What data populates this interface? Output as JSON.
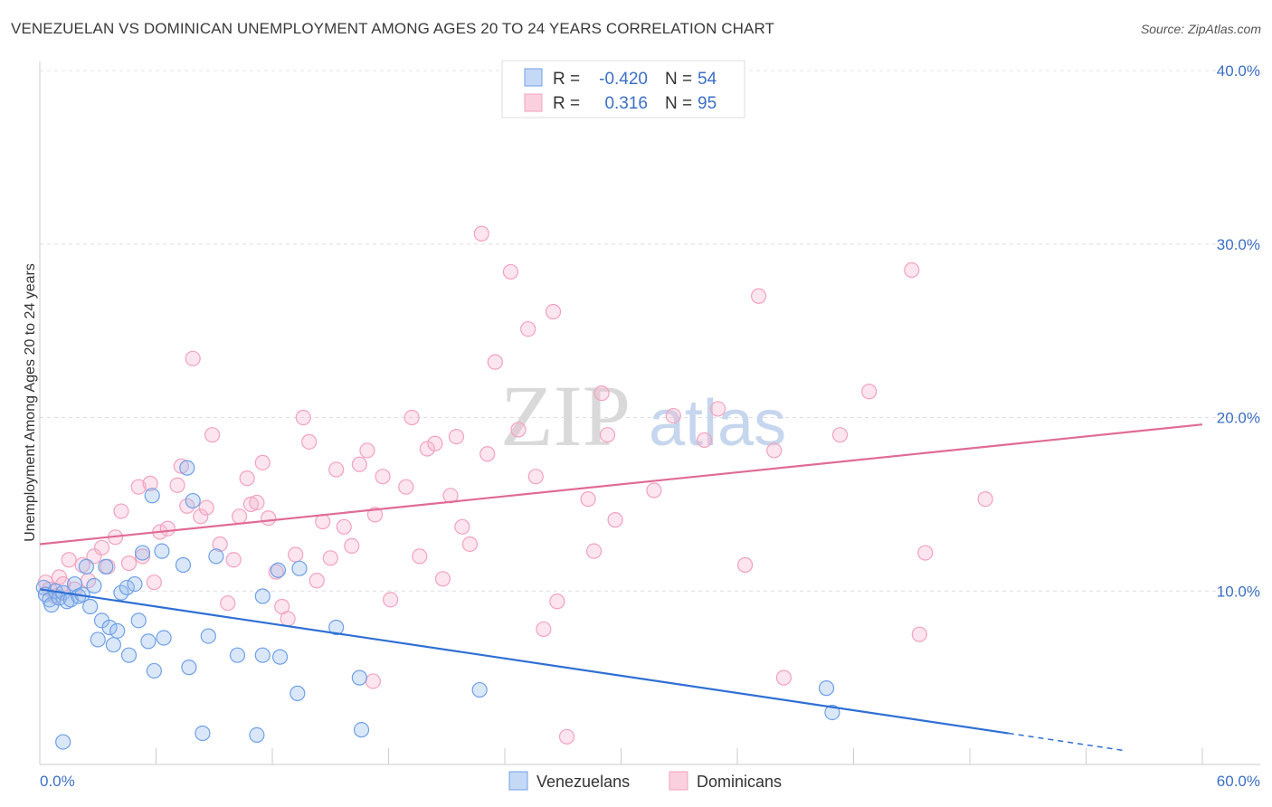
{
  "chart_data": {
    "type": "scatter",
    "title": "VENEZUELAN VS DOMINICAN UNEMPLOYMENT AMONG AGES 20 TO 24 YEARS CORRELATION CHART",
    "source": "Source: ZipAtlas.com",
    "ylabel": "Unemployment Among Ages 20 to 24 years",
    "xlim": [
      0,
      60
    ],
    "ylim": [
      0,
      40
    ],
    "x_tick_labels": [
      "0.0%",
      "60.0%"
    ],
    "y_ticks": [
      10,
      20,
      30,
      40
    ],
    "y_tick_labels": [
      "10.0%",
      "20.0%",
      "30.0%",
      "40.0%"
    ],
    "watermark": {
      "zip": "ZIP",
      "atlas": "atlas"
    },
    "legend": {
      "r_label": "R =",
      "n_label": "N =",
      "entries": [
        {
          "r": "-0.420",
          "n": "54"
        },
        {
          "r": "0.316",
          "n": "95"
        }
      ]
    },
    "series": [
      {
        "name": "Venezuelans",
        "color": "#6fa0e6",
        "line_color": "#2f6fd4",
        "trend": {
          "x0": 0,
          "y0": 10.1,
          "x1": 56.0,
          "y1": 0.8,
          "solid_until": 50.0
        },
        "points": [
          [
            0.2,
            10.2
          ],
          [
            0.3,
            9.8
          ],
          [
            0.5,
            9.5
          ],
          [
            0.6,
            9.2
          ],
          [
            0.8,
            10.0
          ],
          [
            1.0,
            9.6
          ],
          [
            1.2,
            9.9
          ],
          [
            1.4,
            9.4
          ],
          [
            1.6,
            9.5
          ],
          [
            1.8,
            10.4
          ],
          [
            2.0,
            9.7
          ],
          [
            2.2,
            9.8
          ],
          [
            2.4,
            11.4
          ],
          [
            2.6,
            9.1
          ],
          [
            2.8,
            10.3
          ],
          [
            3.0,
            7.2
          ],
          [
            3.2,
            8.3
          ],
          [
            3.4,
            11.4
          ],
          [
            3.6,
            7.9
          ],
          [
            3.8,
            6.9
          ],
          [
            4.0,
            7.7
          ],
          [
            4.2,
            9.9
          ],
          [
            4.5,
            10.2
          ],
          [
            4.6,
            6.3
          ],
          [
            4.9,
            10.4
          ],
          [
            5.1,
            8.3
          ],
          [
            5.3,
            12.2
          ],
          [
            5.6,
            7.1
          ],
          [
            5.8,
            15.5
          ],
          [
            5.9,
            5.4
          ],
          [
            6.3,
            12.3
          ],
          [
            6.4,
            7.3
          ],
          [
            7.4,
            11.5
          ],
          [
            7.6,
            17.1
          ],
          [
            7.7,
            5.6
          ],
          [
            7.9,
            15.2
          ],
          [
            8.4,
            1.8
          ],
          [
            8.7,
            7.4
          ],
          [
            9.1,
            12.0
          ],
          [
            10.2,
            6.3
          ],
          [
            11.2,
            1.7
          ],
          [
            11.5,
            9.7
          ],
          [
            11.5,
            6.3
          ],
          [
            12.3,
            11.2
          ],
          [
            12.4,
            6.2
          ],
          [
            13.3,
            4.1
          ],
          [
            13.4,
            11.3
          ],
          [
            15.3,
            7.9
          ],
          [
            16.5,
            5.0
          ],
          [
            16.6,
            2.0
          ],
          [
            22.7,
            4.3
          ],
          [
            1.2,
            1.3
          ],
          [
            40.6,
            4.4
          ],
          [
            40.9,
            3.0
          ]
        ]
      },
      {
        "name": "Dominicans",
        "color": "#f2a2bd",
        "line_color": "#e06b96",
        "trend": {
          "x0": 0,
          "y0": 12.7,
          "x1": 60.0,
          "y1": 19.6
        },
        "points": [
          [
            0.3,
            10.5
          ],
          [
            0.5,
            10.1
          ],
          [
            0.8,
            9.7
          ],
          [
            1.0,
            10.8
          ],
          [
            1.2,
            10.4
          ],
          [
            1.5,
            11.8
          ],
          [
            1.8,
            10.1
          ],
          [
            2.2,
            11.5
          ],
          [
            2.5,
            10.6
          ],
          [
            2.8,
            12.0
          ],
          [
            3.2,
            12.5
          ],
          [
            3.5,
            11.4
          ],
          [
            3.9,
            13.1
          ],
          [
            4.2,
            14.6
          ],
          [
            4.6,
            11.6
          ],
          [
            5.1,
            16.0
          ],
          [
            5.3,
            12.0
          ],
          [
            5.7,
            16.2
          ],
          [
            5.9,
            10.5
          ],
          [
            6.2,
            13.4
          ],
          [
            6.6,
            13.6
          ],
          [
            7.1,
            16.1
          ],
          [
            7.3,
            17.2
          ],
          [
            7.6,
            14.9
          ],
          [
            7.9,
            23.4
          ],
          [
            8.3,
            14.3
          ],
          [
            8.6,
            14.8
          ],
          [
            8.9,
            19.0
          ],
          [
            9.3,
            12.7
          ],
          [
            9.7,
            9.3
          ],
          [
            10.0,
            11.8
          ],
          [
            10.3,
            14.3
          ],
          [
            10.7,
            16.5
          ],
          [
            10.9,
            15.0
          ],
          [
            11.2,
            15.1
          ],
          [
            11.5,
            17.4
          ],
          [
            11.8,
            14.2
          ],
          [
            12.2,
            11.1
          ],
          [
            12.5,
            9.1
          ],
          [
            12.8,
            8.4
          ],
          [
            13.2,
            12.1
          ],
          [
            13.6,
            20.0
          ],
          [
            13.9,
            18.6
          ],
          [
            14.3,
            10.6
          ],
          [
            14.6,
            14.0
          ],
          [
            15.0,
            11.9
          ],
          [
            15.3,
            17.0
          ],
          [
            15.7,
            13.7
          ],
          [
            16.1,
            12.6
          ],
          [
            16.5,
            17.3
          ],
          [
            16.9,
            18.1
          ],
          [
            17.3,
            14.4
          ],
          [
            17.7,
            16.6
          ],
          [
            18.1,
            9.5
          ],
          [
            18.9,
            16.0
          ],
          [
            19.2,
            20.0
          ],
          [
            19.6,
            12.0
          ],
          [
            20.0,
            18.2
          ],
          [
            20.4,
            18.5
          ],
          [
            20.8,
            10.7
          ],
          [
            21.2,
            15.5
          ],
          [
            21.5,
            18.9
          ],
          [
            21.8,
            13.7
          ],
          [
            22.2,
            12.7
          ],
          [
            22.8,
            30.6
          ],
          [
            23.1,
            17.9
          ],
          [
            23.5,
            23.2
          ],
          [
            24.3,
            28.4
          ],
          [
            24.7,
            19.3
          ],
          [
            25.2,
            25.1
          ],
          [
            25.6,
            16.6
          ],
          [
            26.0,
            7.8
          ],
          [
            26.5,
            26.1
          ],
          [
            26.7,
            9.4
          ],
          [
            27.2,
            1.6
          ],
          [
            28.3,
            15.3
          ],
          [
            28.6,
            12.3
          ],
          [
            29.0,
            21.4
          ],
          [
            29.3,
            19.0
          ],
          [
            29.7,
            14.1
          ],
          [
            31.7,
            15.8
          ],
          [
            32.7,
            20.1
          ],
          [
            34.3,
            18.7
          ],
          [
            35.0,
            20.5
          ],
          [
            36.4,
            11.5
          ],
          [
            37.1,
            27.0
          ],
          [
            37.9,
            18.1
          ],
          [
            38.4,
            5.0
          ],
          [
            41.3,
            19.0
          ],
          [
            42.8,
            21.5
          ],
          [
            45.0,
            28.5
          ],
          [
            45.4,
            7.5
          ],
          [
            45.7,
            12.2
          ],
          [
            48.8,
            15.3
          ],
          [
            17.2,
            4.8
          ]
        ]
      }
    ]
  }
}
